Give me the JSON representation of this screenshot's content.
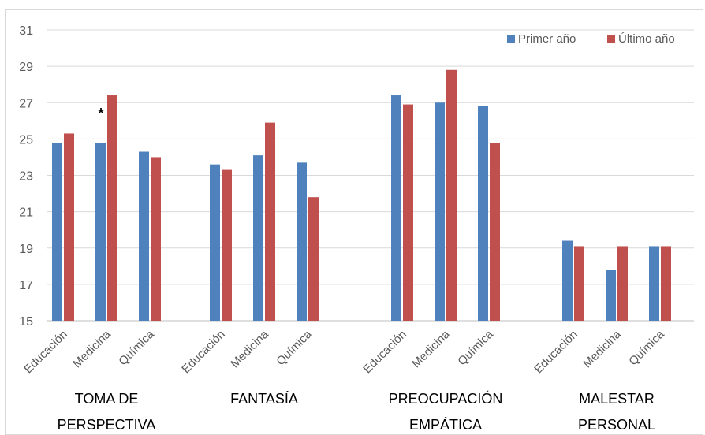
{
  "chart_data": {
    "type": "bar",
    "title": "",
    "xlabel": "",
    "ylabel": "",
    "ylim": [
      15,
      31
    ],
    "yticks": [
      15,
      17,
      19,
      21,
      23,
      25,
      27,
      29,
      31
    ],
    "grid": true,
    "legend_position": "top-right",
    "groups": [
      {
        "label_lines": [
          "TOMA DE",
          "PERSPECTIVA"
        ],
        "categories": [
          "Educación",
          "Medicina",
          "Química"
        ]
      },
      {
        "label_lines": [
          "FANTASÍA"
        ],
        "categories": [
          "Educación",
          "Medicina",
          "Química"
        ]
      },
      {
        "label_lines": [
          "PREOCUPACIÓN",
          "EMPÁTICA"
        ],
        "categories": [
          "Educación",
          "Medicina",
          "Química"
        ]
      },
      {
        "label_lines": [
          "MALESTAR",
          "PERSONAL"
        ],
        "categories": [
          "Educación",
          "Medicina",
          "Química"
        ]
      }
    ],
    "series": [
      {
        "name": "Primer año",
        "color": "#4f81bd",
        "values": [
          24.8,
          24.8,
          24.3,
          23.6,
          24.1,
          23.7,
          27.4,
          27.0,
          26.8,
          19.4,
          17.8,
          19.1
        ]
      },
      {
        "name": "Último año",
        "color": "#c0504d",
        "values": [
          25.3,
          27.4,
          24.0,
          23.3,
          25.9,
          21.8,
          26.9,
          28.8,
          24.8,
          19.1,
          19.1,
          19.1
        ]
      }
    ],
    "annotations": [
      {
        "text": "*",
        "group": 0,
        "category": 1
      }
    ]
  }
}
